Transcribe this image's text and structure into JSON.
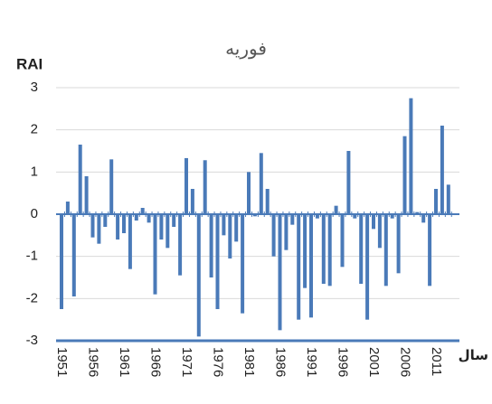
{
  "chart_data": {
    "type": "bar",
    "title": "فوریه",
    "y_label": "RAI",
    "x_label": "سال",
    "categories": [
      "1951",
      null,
      null,
      null,
      null,
      "1956",
      null,
      null,
      null,
      null,
      "1961",
      null,
      null,
      null,
      null,
      "1966",
      null,
      null,
      null,
      null,
      "1971",
      null,
      null,
      null,
      null,
      "1976",
      null,
      null,
      null,
      null,
      "1981",
      null,
      null,
      null,
      null,
      "1986",
      null,
      null,
      null,
      null,
      "1991",
      null,
      null,
      null,
      null,
      "1996",
      null,
      null,
      null,
      null,
      "2001",
      null,
      null,
      null,
      null,
      "2006",
      null,
      null,
      null,
      null,
      "2011",
      null,
      null
    ],
    "values": [
      -2.25,
      0.3,
      -1.95,
      1.65,
      0.9,
      -0.55,
      -0.7,
      -0.3,
      1.3,
      -0.6,
      -0.45,
      -1.3,
      -0.15,
      0.15,
      -0.2,
      -1.9,
      -0.6,
      -0.8,
      -0.3,
      -1.45,
      1.33,
      0.6,
      -2.9,
      1.28,
      -1.5,
      -2.25,
      -0.5,
      -1.05,
      -0.65,
      -2.35,
      1.0,
      -0.05,
      1.45,
      0.6,
      -1.0,
      -2.75,
      -0.85,
      -0.25,
      -2.5,
      -1.75,
      -2.45,
      -0.1,
      -1.65,
      -1.7,
      0.2,
      -1.25,
      1.5,
      -0.1,
      -1.65,
      -2.5,
      -0.35,
      -0.8,
      -1.7,
      -0.1,
      -1.4,
      1.85,
      2.75,
      0.05,
      -0.2,
      -1.7,
      0.6,
      2.1,
      0.7
    ],
    "color": "#4a7ab8",
    "ylim": [
      -3,
      3
    ],
    "yticks": [
      -3,
      -2,
      -1,
      0,
      1,
      2,
      3
    ],
    "grid": true
  }
}
